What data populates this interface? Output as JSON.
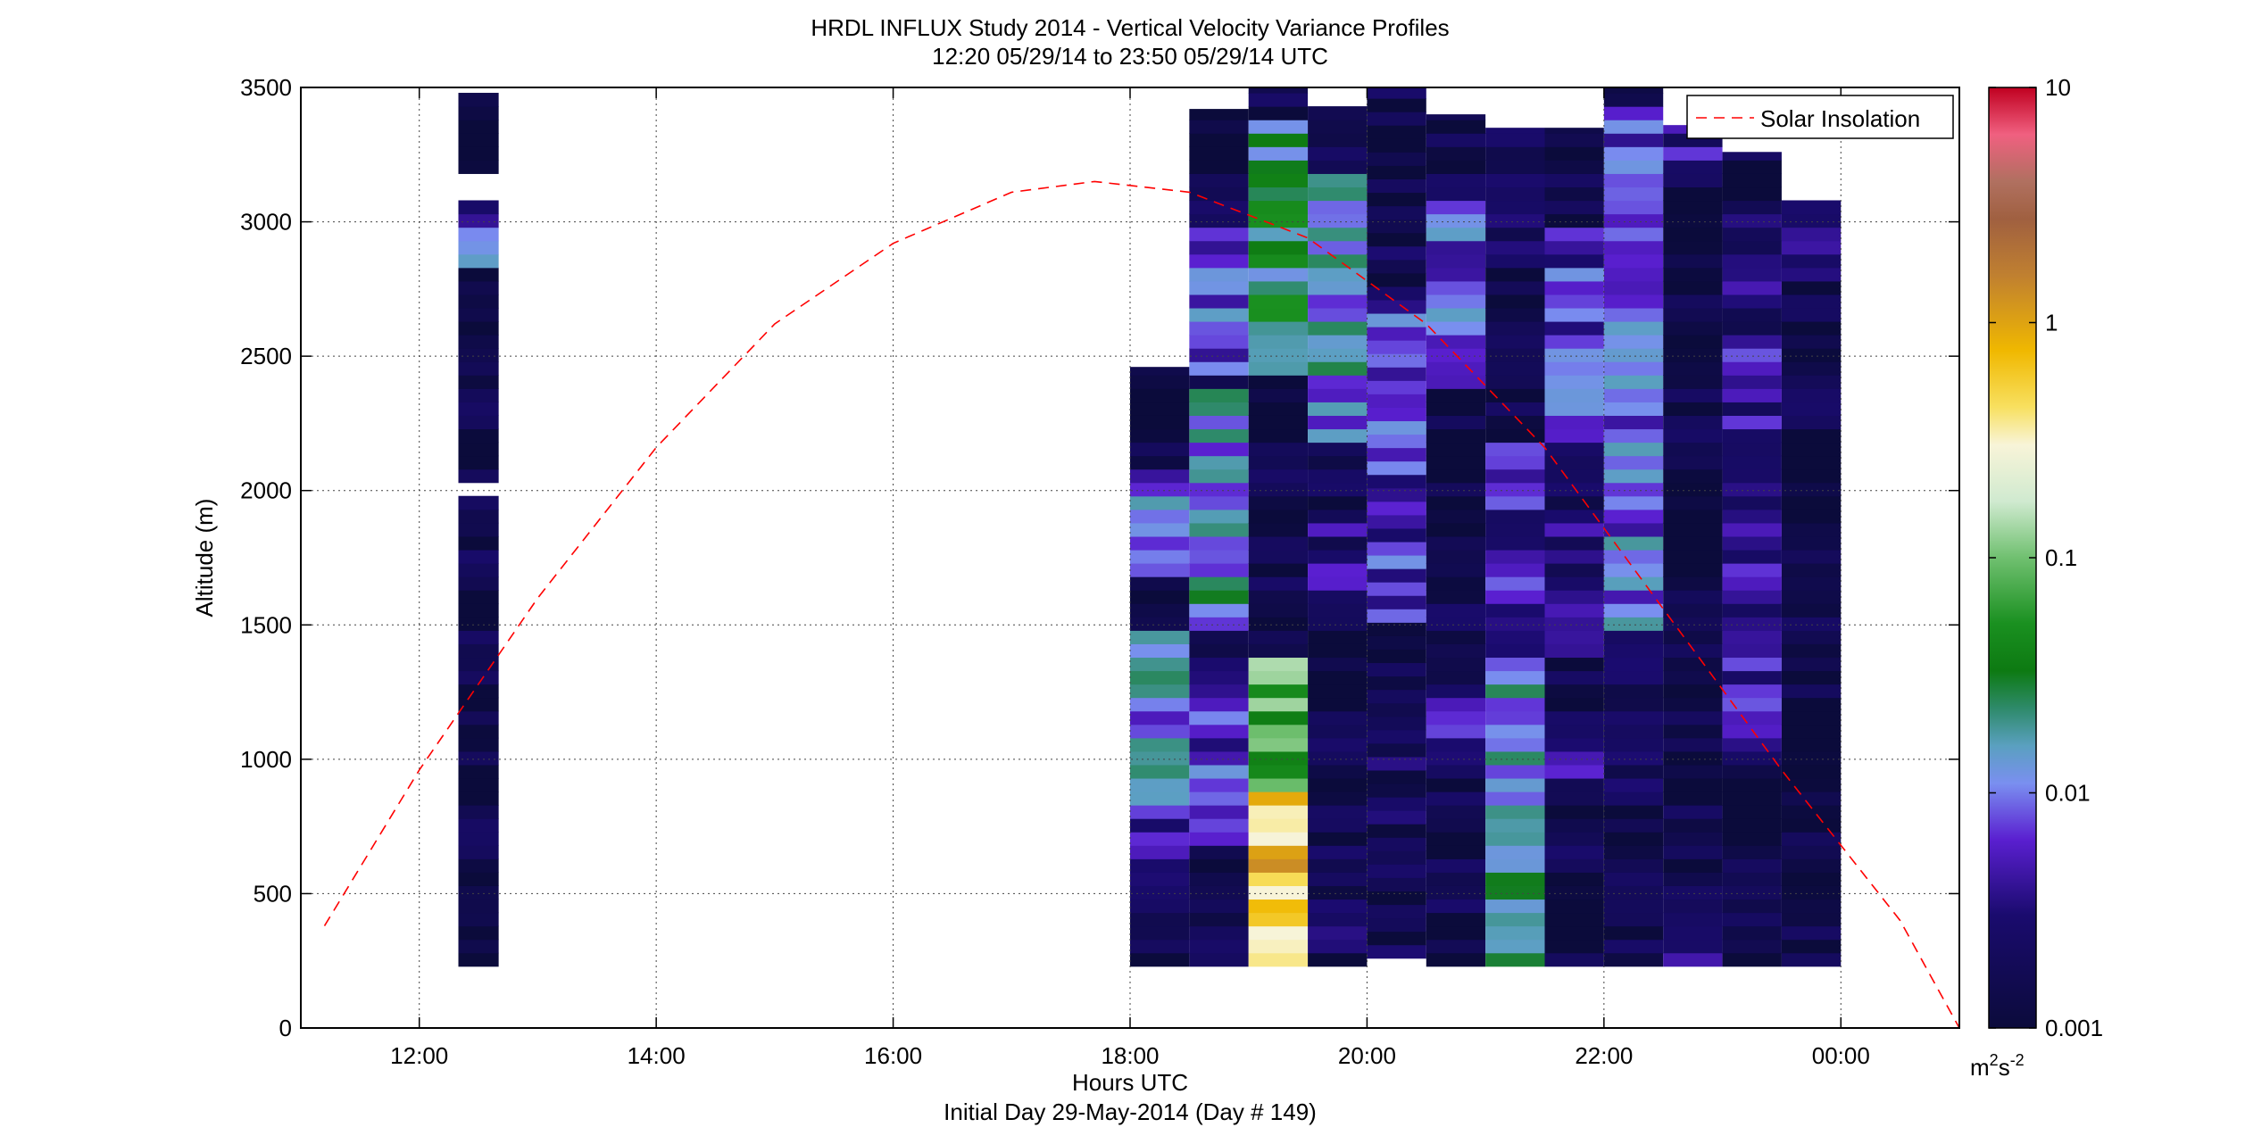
{
  "chart_data": {
    "type": "heatmap",
    "title": "HRDL INFLUX Study 2014 - Vertical Velocity Variance Profiles",
    "subtitle": "12:20 05/29/14 to 23:50 05/29/14  UTC",
    "xlabel": "Hours UTC",
    "xlabel2": "Initial Day 29-May-2014 (Day # 149)",
    "ylabel": "Altitude (m)",
    "xlim": [
      11.0,
      25.0
    ],
    "ylim": [
      0,
      3500
    ],
    "xticks": [
      12,
      14,
      16,
      18,
      20,
      22,
      24
    ],
    "xtick_labels": [
      "12:00",
      "14:00",
      "16:00",
      "18:00",
      "20:00",
      "22:00",
      "00:00"
    ],
    "yticks": [
      0,
      500,
      1000,
      1500,
      2000,
      2500,
      3000,
      3500
    ],
    "ytick_labels": [
      "0",
      "500",
      "1000",
      "1500",
      "2000",
      "2500",
      "3000",
      "3500"
    ],
    "grid": true,
    "colorbar": {
      "scale": "log",
      "range": [
        0.001,
        10
      ],
      "ticks": [
        0.001,
        0.01,
        0.1,
        1,
        10
      ],
      "tick_labels": [
        "0.001",
        "0.01",
        "0.1",
        "1",
        "10"
      ],
      "unit_base": "m",
      "unit_sup1": "2",
      "unit_mid": "s",
      "unit_sup2": "-2",
      "stops": [
        [
          0.0,
          "#0b0b3b"
        ],
        [
          0.12,
          "#1a0b6e"
        ],
        [
          0.2,
          "#5a1fd0"
        ],
        [
          0.26,
          "#7a8ff0"
        ],
        [
          0.3,
          "#5aa0c0"
        ],
        [
          0.34,
          "#2e8a6a"
        ],
        [
          0.38,
          "#0d7a12"
        ],
        [
          0.43,
          "#1a9020"
        ],
        [
          0.5,
          "#70c070"
        ],
        [
          0.56,
          "#d0ead0"
        ],
        [
          0.62,
          "#f8f4d8"
        ],
        [
          0.66,
          "#f8e060"
        ],
        [
          0.72,
          "#f0b800"
        ],
        [
          0.8,
          "#c08030"
        ],
        [
          0.86,
          "#a06040"
        ],
        [
          0.9,
          "#b07060"
        ],
        [
          0.95,
          "#f06080"
        ],
        [
          1.0,
          "#c00020"
        ]
      ]
    },
    "columns": [
      {
        "t": 12.33,
        "w": 0.34,
        "bottom": 230,
        "top": 3480,
        "gaps": [
          [
            1960,
            2010
          ],
          [
            3100,
            3160
          ],
          [
            3420,
            3450
          ]
        ],
        "bands": [
          [
            2820,
            3080,
            0.003
          ],
          [
            2850,
            2940,
            0.01
          ],
          [
            2950,
            3080,
            0.005
          ]
        ],
        "base": 0.0012
      },
      {
        "t": 18.0,
        "w": 0.5,
        "bottom": 230,
        "top": 2460,
        "bands": [
          [
            1700,
            2100,
            0.008
          ],
          [
            800,
            1500,
            0.012
          ],
          [
            480,
            720,
            0.004
          ]
        ],
        "base": 0.0012
      },
      {
        "t": 18.5,
        "w": 0.5,
        "bottom": 230,
        "top": 3420,
        "base": 0.0013,
        "bands": [
          [
            2450,
            2980,
            0.007
          ],
          [
            1500,
            2400,
            0.014
          ],
          [
            700,
            1400,
            0.006
          ],
          [
            3100,
            3400,
            0.0012
          ]
        ]
      },
      {
        "t": 19.0,
        "w": 0.5,
        "bottom": 230,
        "top": 3500,
        "base": 0.0012,
        "bands": [
          [
            2450,
            3400,
            0.025
          ],
          [
            230,
            880,
            0.6
          ],
          [
            880,
            1400,
            0.08
          ]
        ]
      },
      {
        "t": 19.5,
        "w": 0.5,
        "bottom": 230,
        "top": 3430,
        "base": 0.0013,
        "bands": [
          [
            2200,
            3200,
            0.012
          ],
          [
            1500,
            1900,
            0.003
          ],
          [
            300,
            600,
            0.002
          ]
        ]
      },
      {
        "t": 20.0,
        "w": 0.5,
        "bottom": 260,
        "top": 3500,
        "base": 0.0015,
        "bands": [
          [
            1500,
            2700,
            0.006
          ],
          [
            900,
            1300,
            0.0018
          ]
        ]
      },
      {
        "t": 20.5,
        "w": 0.5,
        "bottom": 230,
        "top": 3400,
        "base": 0.0013,
        "bands": [
          [
            2400,
            3100,
            0.007
          ],
          [
            1000,
            1220,
            0.004
          ]
        ]
      },
      {
        "t": 21.0,
        "w": 0.5,
        "bottom": 230,
        "top": 3350,
        "base": 0.0013,
        "bands": [
          [
            1400,
            2200,
            0.004
          ],
          [
            230,
            1400,
            0.015
          ],
          [
            2600,
            3300,
            0.0015
          ]
        ]
      },
      {
        "t": 21.5,
        "w": 0.5,
        "bottom": 230,
        "top": 3350,
        "base": 0.0013,
        "bands": [
          [
            2200,
            3000,
            0.006
          ],
          [
            1400,
            1900,
            0.003
          ],
          [
            850,
            1070,
            0.003
          ]
        ]
      },
      {
        "t": 22.0,
        "w": 0.5,
        "bottom": 230,
        "top": 3500,
        "base": 0.0014,
        "bands": [
          [
            1500,
            3100,
            0.009
          ],
          [
            3100,
            3450,
            0.006
          ]
        ]
      },
      {
        "t": 22.5,
        "w": 0.5,
        "bottom": 230,
        "top": 3360,
        "base": 0.0012,
        "bands": [
          [
            3150,
            3360,
            0.004
          ],
          [
            230,
            270,
            0.005
          ]
        ]
      },
      {
        "t": 23.0,
        "w": 0.5,
        "bottom": 230,
        "top": 3260,
        "base": 0.0013,
        "bands": [
          [
            1000,
            2600,
            0.004
          ],
          [
            2700,
            3100,
            0.003
          ]
        ]
      },
      {
        "t": 23.5,
        "w": 0.5,
        "bottom": 230,
        "top": 3080,
        "base": 0.0012,
        "bands": [
          [
            2800,
            3080,
            0.005
          ],
          [
            2300,
            2600,
            0.0015
          ]
        ]
      }
    ],
    "series": [
      {
        "name": "Solar Insolation",
        "style": "dashed",
        "color": "#ff0000",
        "x": [
          11.2,
          12.0,
          13.0,
          14.0,
          15.0,
          16.0,
          17.0,
          17.7,
          18.5,
          19.5,
          20.5,
          21.5,
          22.5,
          23.5,
          24.5,
          25.0
        ],
        "y": [
          380,
          960,
          1600,
          2160,
          2620,
          2920,
          3110,
          3150,
          3110,
          2940,
          2620,
          2160,
          1560,
          960,
          400,
          0
        ]
      }
    ],
    "legend": {
      "placement": "top-right"
    }
  }
}
